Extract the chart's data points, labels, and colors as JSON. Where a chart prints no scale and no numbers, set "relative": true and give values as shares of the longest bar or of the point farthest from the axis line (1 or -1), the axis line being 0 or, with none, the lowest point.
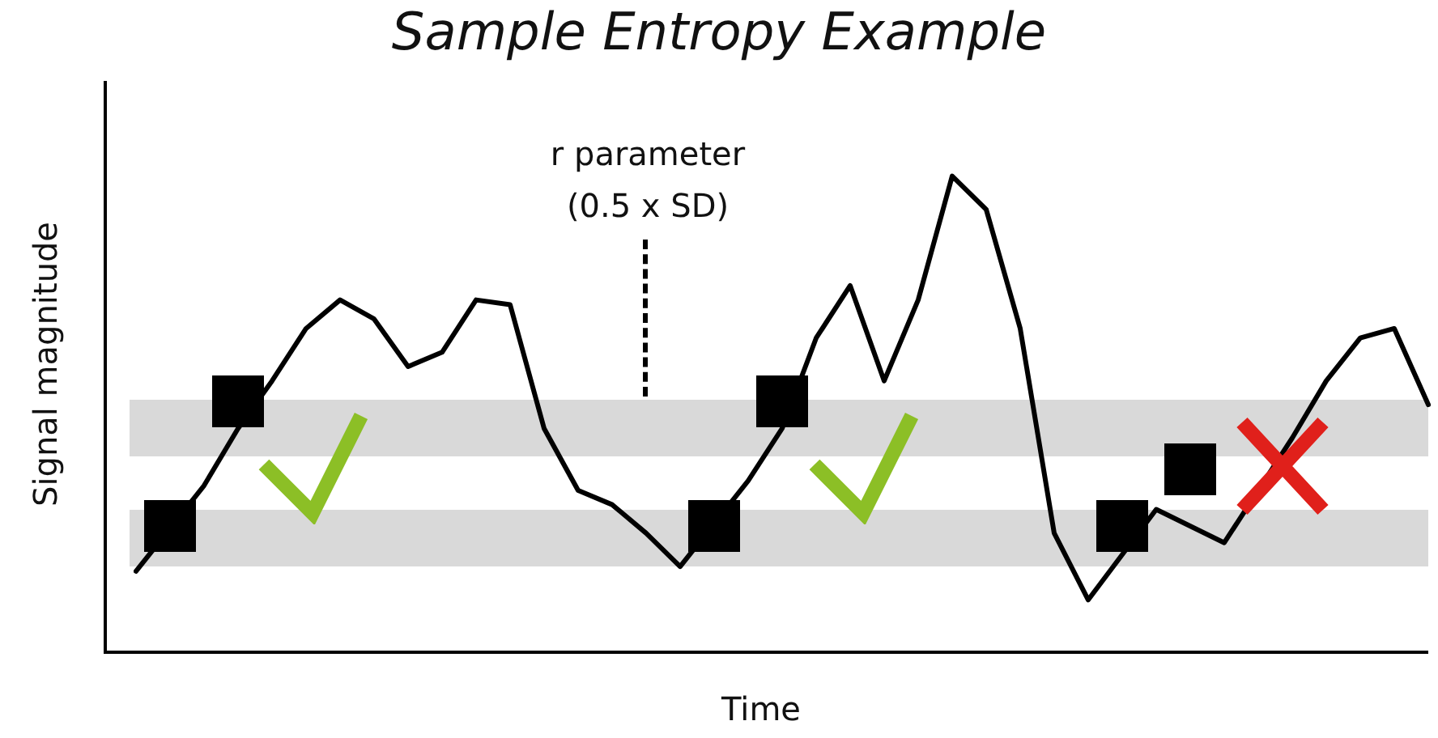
{
  "chart_data": {
    "type": "line",
    "title": "Sample Entropy Example",
    "xlabel": "Time",
    "ylabel": "Signal magnitude",
    "relative": true,
    "grid": false,
    "annotations": [
      "r parameter",
      "(0.5 x SD)"
    ],
    "categories": [
      null,
      null,
      null,
      null,
      null,
      null,
      null,
      null,
      null,
      null,
      null,
      null,
      null,
      null,
      null,
      null,
      null,
      null,
      null,
      null,
      null,
      null,
      null,
      null,
      null,
      null,
      null,
      null,
      null,
      null,
      null,
      null,
      null,
      null,
      null,
      null,
      null,
      null,
      null
    ],
    "bands": [
      {
        "axis": "y",
        "from": 0.18,
        "to": 0.3,
        "color": "#d9d9d9"
      },
      {
        "axis": "y",
        "from": 0.41,
        "to": 0.53,
        "color": "#d9d9d9"
      }
    ],
    "series": [
      {
        "color": "#000000",
        "values": [
          0.17,
          null,
          0.35,
          0.47,
          0.57,
          0.68,
          0.74,
          0.7,
          0.6,
          0.63,
          0.74,
          0.73,
          0.47,
          0.34,
          0.31,
          0.25,
          0.18,
          null,
          0.36,
          0.47,
          0.66,
          0.77,
          0.57,
          0.74,
          1,
          0.93,
          0.68,
          0.25,
          0.11,
          null,
          0.3,
          null,
          0.23,
          null,
          0.45,
          0.57,
          0.66,
          0.68,
          0.52
        ]
      }
    ]
  }
}
